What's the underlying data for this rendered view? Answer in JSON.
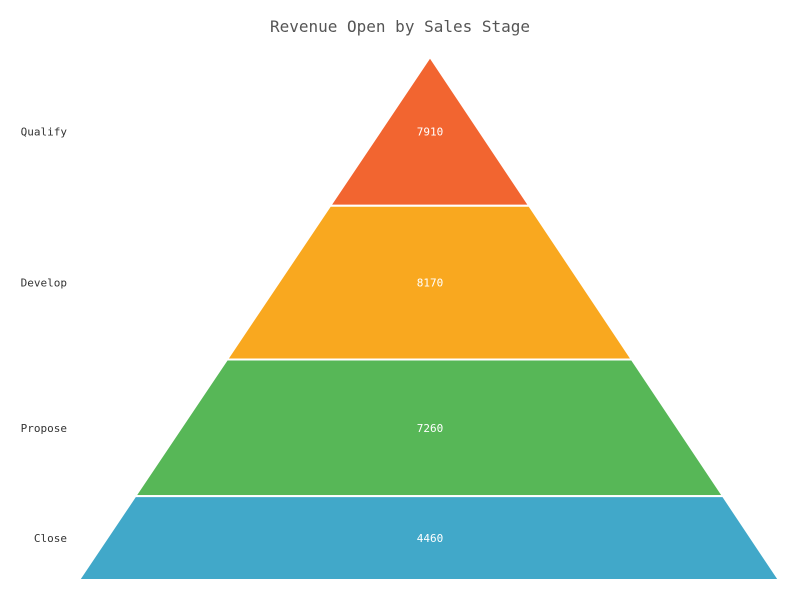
{
  "chart_data": {
    "type": "pyramid",
    "title": "Revenue Open by Sales Stage",
    "categories": [
      "Qualify",
      "Develop",
      "Propose",
      "Close"
    ],
    "values": [
      7910,
      8170,
      7260,
      4460
    ],
    "colors": [
      "#f26530",
      "#f9a81f",
      "#57b757",
      "#41a8c9"
    ],
    "legend": "none",
    "grid": false
  }
}
